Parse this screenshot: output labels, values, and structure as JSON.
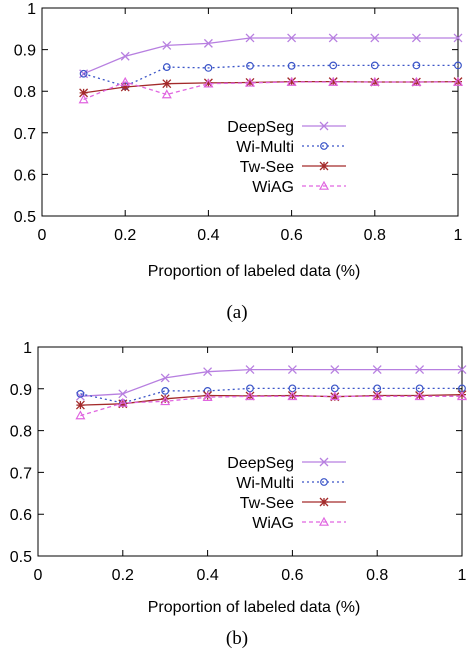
{
  "chart_data": [
    {
      "type": "line",
      "caption": "(a)",
      "xlabel": "Proportion of labeled data (%)",
      "ylabel": "",
      "xlim": [
        0,
        1
      ],
      "ylim": [
        0.5,
        1
      ],
      "xticks": [
        0,
        0.2,
        0.4,
        0.6,
        0.8,
        1
      ],
      "xtick_labels": [
        "0",
        "0.2",
        "0.4",
        "0.6",
        "0.8",
        "1"
      ],
      "yticks": [
        0.5,
        0.6,
        0.7,
        0.8,
        0.9,
        1
      ],
      "ytick_labels": [
        "0.5",
        "0.6",
        "0.7",
        "0.8",
        "0.9",
        "1"
      ],
      "grid": false,
      "legend_position": "center",
      "x": [
        0.1,
        0.2,
        0.3,
        0.4,
        0.5,
        0.6,
        0.7,
        0.8,
        0.9,
        1.0
      ],
      "series": [
        {
          "name": "DeepSeg",
          "color": "#b77fe0",
          "marker": "x",
          "dash": "solid",
          "values": [
            0.842,
            0.884,
            0.91,
            0.915,
            0.928,
            0.928,
            0.928,
            0.928,
            0.928,
            0.928
          ]
        },
        {
          "name": "Wi-Multi",
          "color": "#3b55c8",
          "marker": "circle",
          "dash": "dotted",
          "values": [
            0.842,
            0.812,
            0.858,
            0.856,
            0.861,
            0.861,
            0.862,
            0.862,
            0.862,
            0.862
          ]
        },
        {
          "name": "Tw-See",
          "color": "#a32a2a",
          "marker": "star",
          "dash": "solid",
          "values": [
            0.796,
            0.81,
            0.818,
            0.82,
            0.821,
            0.823,
            0.823,
            0.822,
            0.822,
            0.823
          ]
        },
        {
          "name": "WiAG",
          "color": "#e066e0",
          "marker": "triangle",
          "dash": "dashed",
          "values": [
            0.78,
            0.822,
            0.792,
            0.818,
            0.82,
            0.822,
            0.822,
            0.822,
            0.822,
            0.822
          ]
        }
      ]
    },
    {
      "type": "line",
      "caption": "(b)",
      "xlabel": "Proportion of labeled data (%)",
      "ylabel": "",
      "xlim": [
        0,
        1
      ],
      "ylim": [
        0.5,
        1
      ],
      "xticks": [
        0,
        0.2,
        0.4,
        0.6,
        0.8,
        1
      ],
      "xtick_labels": [
        "0",
        "0.2",
        "0.4",
        "0.6",
        "0.8",
        "1"
      ],
      "yticks": [
        0.5,
        0.6,
        0.7,
        0.8,
        0.9,
        1
      ],
      "ytick_labels": [
        "0.5",
        "0.6",
        "0.7",
        "0.8",
        "0.9",
        "1"
      ],
      "grid": false,
      "legend_position": "center",
      "x": [
        0.1,
        0.2,
        0.3,
        0.4,
        0.5,
        0.6,
        0.7,
        0.8,
        0.9,
        1.0
      ],
      "series": [
        {
          "name": "DeepSeg",
          "color": "#b77fe0",
          "marker": "x",
          "dash": "solid",
          "values": [
            0.882,
            0.888,
            0.926,
            0.941,
            0.946,
            0.946,
            0.946,
            0.946,
            0.946,
            0.946
          ]
        },
        {
          "name": "Wi-Multi",
          "color": "#3b55c8",
          "marker": "circle",
          "dash": "dotted",
          "values": [
            0.888,
            0.866,
            0.895,
            0.895,
            0.901,
            0.901,
            0.901,
            0.901,
            0.901,
            0.901
          ]
        },
        {
          "name": "Tw-See",
          "color": "#a32a2a",
          "marker": "star",
          "dash": "solid",
          "values": [
            0.861,
            0.864,
            0.876,
            0.884,
            0.883,
            0.884,
            0.881,
            0.884,
            0.884,
            0.886
          ]
        },
        {
          "name": "WiAG",
          "color": "#e066e0",
          "marker": "triangle",
          "dash": "dashed",
          "values": [
            0.836,
            0.866,
            0.87,
            0.88,
            0.882,
            0.882,
            0.882,
            0.882,
            0.882,
            0.882
          ]
        }
      ]
    }
  ]
}
